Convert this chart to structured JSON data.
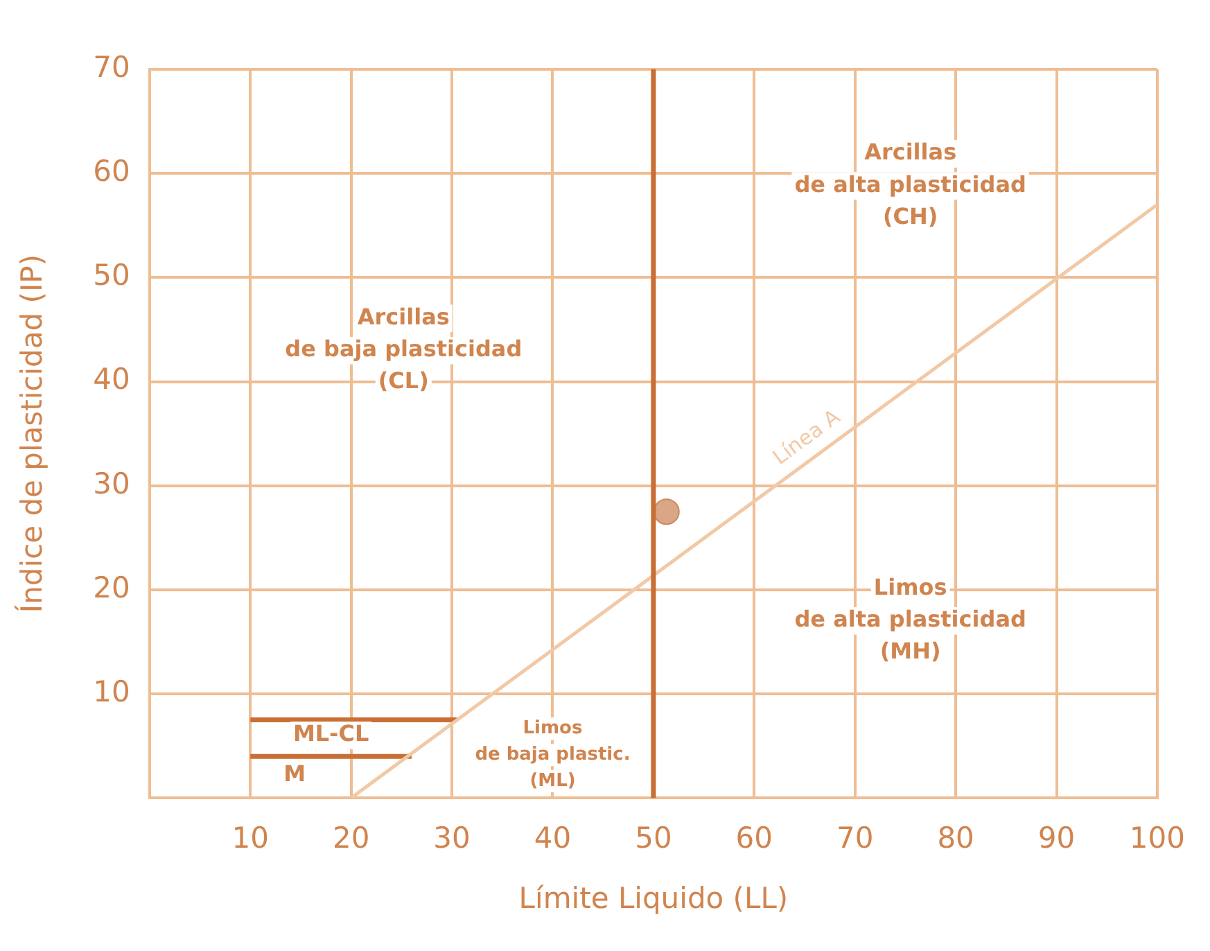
{
  "chart_data": {
    "type": "line",
    "xlabel": "Límite Liquido (LL)",
    "ylabel": "Índice de plasticidad (IP)",
    "xlim": [
      0,
      100
    ],
    "xticks": [
      10,
      20,
      30,
      40,
      50,
      60,
      70,
      80,
      90,
      100
    ],
    "ylim": [
      0,
      70
    ],
    "yticks": [
      10,
      20,
      30,
      40,
      50,
      60,
      70
    ],
    "grid": true,
    "legend": false,
    "series": [
      {
        "name": "Línea A",
        "marker": "none",
        "color": "#f2c9a6",
        "x": [
          20,
          100
        ],
        "values": [
          0,
          57
        ]
      },
      {
        "marker": "none",
        "color": "#c96f35",
        "x": [
          10,
          30.5
        ],
        "values": [
          7.5,
          7.5
        ]
      },
      {
        "marker": "none",
        "color": "#c96f35",
        "x": [
          10,
          26
        ],
        "values": [
          4,
          4
        ]
      },
      {
        "type": "scatter",
        "marker": "circle",
        "color": "#dba685",
        "x": [
          51.3
        ],
        "values": [
          27.5
        ]
      }
    ],
    "ref_lines": [
      {
        "axis": "x",
        "value": 50,
        "color": "#c96f35"
      }
    ],
    "annotations": [
      "Arcillas\nde baja plasticidad\n(CL)",
      "Arcillas\nde alta plasticidad\n(CH)",
      "Limos\nde alta plasticidad\n(MH)",
      "Limos\nde baja plastic.\n(ML)",
      "ML-CL",
      "M"
    ]
  }
}
